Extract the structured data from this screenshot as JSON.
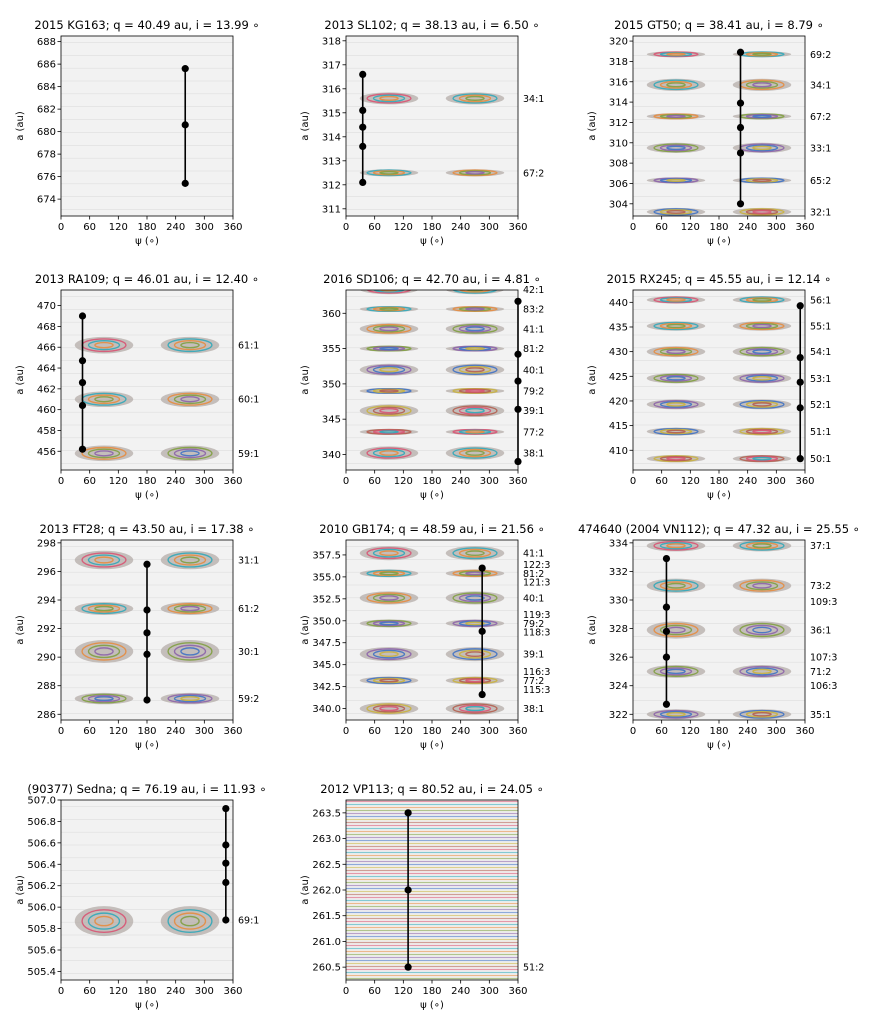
{
  "figure": {
    "colors": {
      "background": "#f2f2f2",
      "axis": "#000000",
      "trajectory": "#000000",
      "swirls": [
        "#d94f70",
        "#2aa7b8",
        "#e8893a",
        "#7c9e3a",
        "#8a5fa8",
        "#3a6fc4",
        "#c9b23a",
        "#b35a4a"
      ]
    }
  },
  "chart_data": [
    {
      "type": "scatter",
      "title": "2015 KG163; q = 40.49 au, i = 13.99 ∘",
      "xlabel": "ψ (∘)",
      "ylabel": "a (au)",
      "xlim": [
        0,
        360
      ],
      "ylim": [
        672.5,
        688.5
      ],
      "xticks": [
        0,
        60,
        120,
        180,
        240,
        300,
        360
      ],
      "yticks": [
        674,
        676,
        678,
        680,
        682,
        684,
        686,
        688
      ],
      "resonances": [],
      "trajectory": {
        "x": 260,
        "points": [
          675.4,
          680.6,
          685.6
        ]
      },
      "islands": []
    },
    {
      "type": "scatter",
      "title": "2013 SL102; q = 38.13 au, i = 6.50 ∘",
      "xlabel": "ψ (∘)",
      "ylabel": "a (au)",
      "xlim": [
        0,
        360
      ],
      "ylim": [
        310.7,
        318.2
      ],
      "xticks": [
        0,
        60,
        120,
        180,
        240,
        300,
        360
      ],
      "yticks": [
        311,
        312,
        313,
        314,
        315,
        316,
        317,
        318
      ],
      "resonances": [
        {
          "label": "34:1",
          "a": 315.6
        },
        {
          "label": "67:2",
          "a": 312.5
        }
      ],
      "trajectory": {
        "x": 35,
        "points": [
          312.1,
          313.6,
          314.4,
          315.1,
          316.6
        ]
      },
      "islands": [
        {
          "a": 315.6,
          "h": 0.5
        },
        {
          "a": 312.5,
          "h": 0.3
        }
      ]
    },
    {
      "type": "scatter",
      "title": "2015 GT50; q = 38.41 au, i = 8.79 ∘",
      "xlabel": "ψ (∘)",
      "ylabel": "a (au)",
      "xlim": [
        0,
        360
      ],
      "ylim": [
        302.8,
        320.5
      ],
      "xticks": [
        0,
        60,
        120,
        180,
        240,
        300,
        360
      ],
      "yticks": [
        304,
        306,
        308,
        310,
        312,
        314,
        316,
        318,
        320
      ],
      "resonances": [
        {
          "label": "69:2",
          "a": 318.7
        },
        {
          "label": "34:1",
          "a": 315.7
        },
        {
          "label": "67:2",
          "a": 312.6
        },
        {
          "label": "33:1",
          "a": 309.5
        },
        {
          "label": "65:2",
          "a": 306.3
        },
        {
          "label": "32:1",
          "a": 303.2
        }
      ],
      "trajectory": {
        "x": 225,
        "points": [
          304.0,
          309.0,
          311.5,
          313.9,
          318.9
        ]
      },
      "islands": [
        {
          "a": 318.7,
          "h": 0.5
        },
        {
          "a": 315.7,
          "h": 1.2
        },
        {
          "a": 312.6,
          "h": 0.6
        },
        {
          "a": 309.5,
          "h": 1.0
        },
        {
          "a": 306.3,
          "h": 0.5
        },
        {
          "a": 303.2,
          "h": 0.8
        }
      ]
    },
    {
      "type": "scatter",
      "title": "2013 RA109; q = 46.01 au, i = 12.40 ∘",
      "xlabel": "ψ (∘)",
      "ylabel": "a (au)",
      "xlim": [
        0,
        360
      ],
      "ylim": [
        454.2,
        471.5
      ],
      "xticks": [
        0,
        60,
        120,
        180,
        240,
        300,
        360
      ],
      "yticks": [
        456,
        458,
        460,
        462,
        464,
        466,
        468,
        470
      ],
      "resonances": [
        {
          "label": "61:1",
          "a": 466.2
        },
        {
          "label": "60:1",
          "a": 461.0
        },
        {
          "label": "59:1",
          "a": 455.8
        }
      ],
      "trajectory": {
        "x": 45,
        "points": [
          456.2,
          460.4,
          462.6,
          464.7,
          469.0
        ]
      },
      "islands": [
        {
          "a": 466.2,
          "h": 1.6
        },
        {
          "a": 461.0,
          "h": 1.5
        },
        {
          "a": 455.8,
          "h": 1.5
        }
      ]
    },
    {
      "type": "scatter",
      "title": "2016 SD106; q = 42.70 au, i = 4.81 ∘",
      "xlabel": "ψ (∘)",
      "ylabel": "a (au)",
      "xlim": [
        0,
        360
      ],
      "ylim": [
        337.8,
        363.3
      ],
      "xticks": [
        0,
        60,
        120,
        180,
        240,
        300,
        360
      ],
      "yticks": [
        340,
        345,
        350,
        355,
        360
      ],
      "resonances": [
        {
          "label": "42:1",
          "a": 363.4
        },
        {
          "label": "83:2",
          "a": 360.6
        },
        {
          "label": "41:1",
          "a": 357.8
        },
        {
          "label": "81:2",
          "a": 355.0
        },
        {
          "label": "40:1",
          "a": 352.0
        },
        {
          "label": "79:2",
          "a": 349.0
        },
        {
          "label": "39:1",
          "a": 346.2
        },
        {
          "label": "77:2",
          "a": 343.2
        },
        {
          "label": "38:1",
          "a": 340.2
        }
      ],
      "trajectory": {
        "x": 360,
        "points": [
          339.0,
          346.4,
          350.4,
          354.2,
          361.7
        ]
      },
      "islands": [
        {
          "a": 363.4,
          "h": 1.4
        },
        {
          "a": 360.6,
          "h": 0.6
        },
        {
          "a": 357.8,
          "h": 1.6
        },
        {
          "a": 355.0,
          "h": 0.6
        },
        {
          "a": 352.0,
          "h": 1.7
        },
        {
          "a": 349.0,
          "h": 0.7
        },
        {
          "a": 346.2,
          "h": 1.8
        },
        {
          "a": 343.2,
          "h": 0.6
        },
        {
          "a": 340.2,
          "h": 1.9
        }
      ]
    },
    {
      "type": "scatter",
      "title": "2015 RX245; q = 45.55 au, i = 12.14 ∘",
      "xlabel": "ψ (∘)",
      "ylabel": "a (au)",
      "xlim": [
        0,
        360
      ],
      "ylim": [
        406.0,
        442.5
      ],
      "xticks": [
        0,
        60,
        120,
        180,
        240,
        300,
        360
      ],
      "yticks": [
        410,
        415,
        420,
        425,
        430,
        435,
        440
      ],
      "resonances": [
        {
          "label": "56:1",
          "a": 440.5
        },
        {
          "label": "55:1",
          "a": 435.2
        },
        {
          "label": "54:1",
          "a": 430.0
        },
        {
          "label": "53:1",
          "a": 424.6
        },
        {
          "label": "52:1",
          "a": 419.3
        },
        {
          "label": "51:1",
          "a": 413.8
        },
        {
          "label": "50:1",
          "a": 408.3
        }
      ],
      "trajectory": {
        "x": 350,
        "points": [
          408.3,
          418.6,
          423.8,
          428.8,
          439.3
        ]
      },
      "islands": [
        {
          "a": 440.5,
          "h": 1.5
        },
        {
          "a": 435.2,
          "h": 1.9
        },
        {
          "a": 430.0,
          "h": 2.2
        },
        {
          "a": 424.6,
          "h": 2.1
        },
        {
          "a": 419.3,
          "h": 2.0
        },
        {
          "a": 413.8,
          "h": 1.6
        },
        {
          "a": 408.3,
          "h": 1.5
        }
      ]
    },
    {
      "type": "scatter",
      "title": "2013 FT28; q = 43.50 au, i = 17.38 ∘",
      "xlabel": "ψ (∘)",
      "ylabel": "a (au)",
      "xlim": [
        0,
        360
      ],
      "ylim": [
        285.6,
        298.2
      ],
      "xticks": [
        0,
        60,
        120,
        180,
        240,
        300,
        360
      ],
      "yticks": [
        286,
        288,
        290,
        292,
        294,
        296,
        298
      ],
      "resonances": [
        {
          "label": "31:1",
          "a": 296.8
        },
        {
          "label": "61:2",
          "a": 293.4
        },
        {
          "label": "30:1",
          "a": 290.4
        },
        {
          "label": "59:2",
          "a": 287.1
        }
      ],
      "trajectory": {
        "x": 180,
        "points": [
          287.0,
          290.2,
          291.7,
          293.3,
          296.5
        ]
      },
      "islands": [
        {
          "a": 296.8,
          "h": 1.3
        },
        {
          "a": 293.4,
          "h": 0.9
        },
        {
          "a": 290.4,
          "h": 1.6
        },
        {
          "a": 287.1,
          "h": 0.8
        }
      ]
    },
    {
      "type": "scatter",
      "title": "2010 GB174; q = 48.59 au, i = 21.56 ∘",
      "xlabel": "ψ (∘)",
      "ylabel": "a (au)",
      "xlim": [
        0,
        360
      ],
      "ylim": [
        338.7,
        359.2
      ],
      "xticks": [
        0,
        60,
        120,
        180,
        240,
        300,
        360
      ],
      "yticks": [
        340.0,
        342.5,
        345.0,
        347.5,
        350.0,
        352.5,
        355.0,
        357.5
      ],
      "ytick_labels": [
        "340.0",
        "342.5",
        "345.0",
        "347.5",
        "350.0",
        "352.5",
        "355.0",
        "357.5"
      ],
      "resonances": [
        {
          "label": "41:1",
          "a": 357.7
        },
        {
          "label": "122:3",
          "a": 356.4
        },
        {
          "label": "81:2",
          "a": 355.4
        },
        {
          "label": "121:3",
          "a": 354.4
        },
        {
          "label": "40:1",
          "a": 352.6
        },
        {
          "label": "119:3",
          "a": 350.7
        },
        {
          "label": "79:2",
          "a": 349.7
        },
        {
          "label": "118:3",
          "a": 348.7
        },
        {
          "label": "39:1",
          "a": 346.2
        },
        {
          "label": "116:3",
          "a": 344.2
        },
        {
          "label": "77:2",
          "a": 343.2
        },
        {
          "label": "115:3",
          "a": 342.2
        },
        {
          "label": "38:1",
          "a": 340.0
        }
      ],
      "trajectory": {
        "x": 285,
        "points": [
          341.6,
          348.8,
          356.0
        ]
      },
      "islands": [
        {
          "a": 357.7,
          "h": 1.6
        },
        {
          "a": 355.4,
          "h": 0.9
        },
        {
          "a": 352.6,
          "h": 1.5
        },
        {
          "a": 349.7,
          "h": 0.9
        },
        {
          "a": 346.2,
          "h": 1.6
        },
        {
          "a": 343.2,
          "h": 0.9
        },
        {
          "a": 340.0,
          "h": 1.4
        }
      ]
    },
    {
      "type": "scatter",
      "title": "474640 (2004 VN112); q = 47.32 au, i = 25.55 ∘",
      "xlabel": "ψ (∘)",
      "ylabel": "a (au)",
      "xlim": [
        0,
        360
      ],
      "ylim": [
        321.6,
        334.2
      ],
      "xticks": [
        0,
        60,
        120,
        180,
        240,
        300,
        360
      ],
      "yticks": [
        322,
        324,
        326,
        328,
        330,
        332,
        334
      ],
      "resonances": [
        {
          "label": "37:1",
          "a": 333.8
        },
        {
          "label": "73:2",
          "a": 331.0
        },
        {
          "label": "109:3",
          "a": 329.9
        },
        {
          "label": "36:1",
          "a": 327.9
        },
        {
          "label": "107:3",
          "a": 326.0
        },
        {
          "label": "71:2",
          "a": 325.0
        },
        {
          "label": "106:3",
          "a": 324.0
        },
        {
          "label": "35:1",
          "a": 322.0
        }
      ],
      "trajectory": {
        "x": 70,
        "points": [
          322.7,
          326.0,
          327.8,
          329.5,
          332.9
        ]
      },
      "islands": [
        {
          "a": 333.8,
          "h": 0.8
        },
        {
          "a": 331.0,
          "h": 1.0
        },
        {
          "a": 327.9,
          "h": 1.2
        },
        {
          "a": 325.0,
          "h": 0.9
        },
        {
          "a": 322.0,
          "h": 0.7
        }
      ]
    },
    {
      "type": "scatter",
      "title": "(90377) Sedna; q = 76.19 au, i = 11.93 ∘",
      "xlabel": "ψ (∘)",
      "ylabel": "a (au)",
      "xlim": [
        0,
        360
      ],
      "ylim": [
        505.32,
        507.0
      ],
      "xticks": [
        0,
        60,
        120,
        180,
        240,
        300,
        360
      ],
      "yticks": [
        505.4,
        505.6,
        505.8,
        506.0,
        506.2,
        506.4,
        506.6,
        506.8,
        507.0
      ],
      "ytick_labels": [
        "505.4",
        "505.6",
        "505.8",
        "506.0",
        "506.2",
        "506.4",
        "506.6",
        "506.8",
        "507.0"
      ],
      "resonances": [
        {
          "label": "69:1",
          "a": 505.88
        }
      ],
      "trajectory": {
        "x": 345,
        "points": [
          505.88,
          506.23,
          506.41,
          506.58,
          506.92
        ]
      },
      "islands": [
        {
          "a": 505.87,
          "h": 0.28
        }
      ]
    },
    {
      "type": "line",
      "title": "2012 VP113; q = 80.52 au, i = 24.05 ∘",
      "xlabel": "ψ (∘)",
      "ylabel": "a (au)",
      "xlim": [
        0,
        360
      ],
      "ylim": [
        260.25,
        263.75
      ],
      "xticks": [
        0,
        60,
        120,
        180,
        240,
        300,
        360
      ],
      "yticks": [
        260.5,
        261.0,
        261.5,
        262.0,
        262.5,
        263.0,
        263.5
      ],
      "ytick_labels": [
        "260.5",
        "261.0",
        "261.5",
        "262.0",
        "262.5",
        "263.0",
        "263.5"
      ],
      "resonances": [
        {
          "label": "51:2",
          "a": 260.5
        }
      ],
      "trajectory": {
        "x": 130,
        "points": [
          260.5,
          262.0,
          263.5
        ]
      },
      "islands": []
    }
  ]
}
